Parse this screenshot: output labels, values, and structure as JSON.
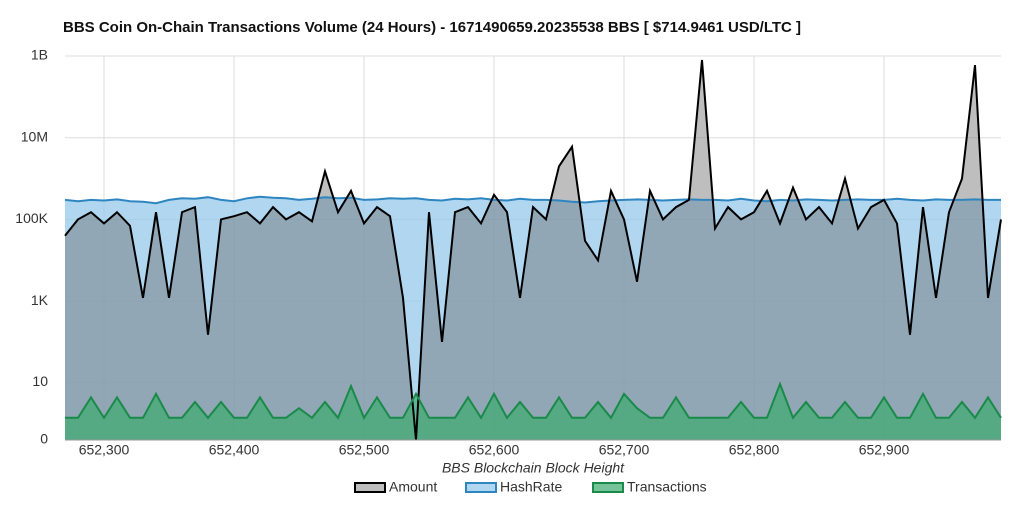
{
  "chart_data": {
    "type": "area",
    "title": "BBS Coin On-Chain Transactions Volume (24 Hours) - 1671490659.20235538 BBS [ $714.9461 USD/LTC ]",
    "x_label": "BBS Blockchain Block Height",
    "x": [
      652270,
      652280,
      652290,
      652300,
      652310,
      652320,
      652330,
      652340,
      652350,
      652360,
      652370,
      652380,
      652390,
      652400,
      652410,
      652420,
      652430,
      652440,
      652450,
      652460,
      652470,
      652480,
      652490,
      652500,
      652510,
      652520,
      652530,
      652540,
      652550,
      652560,
      652570,
      652580,
      652590,
      652600,
      652610,
      652620,
      652630,
      652640,
      652650,
      652660,
      652670,
      652680,
      652690,
      652700,
      652710,
      652720,
      652730,
      652740,
      652750,
      652760,
      652770,
      652780,
      652790,
      652800,
      652810,
      652820,
      652830,
      652840,
      652850,
      652860,
      652870,
      652880,
      652890,
      652900,
      652910,
      652920,
      652930,
      652940,
      652950,
      652960,
      652970,
      652980,
      652990
    ],
    "series": [
      {
        "name": "Amount",
        "color": "#000000",
        "fill": "rgba(110,110,110,0.45)",
        "values": [
          40000,
          100000,
          150000,
          80000,
          150000,
          70000,
          1200,
          150000,
          1200,
          150000,
          200000,
          150,
          100000,
          120000,
          150000,
          80000,
          200000,
          100000,
          150000,
          90000,
          1500000,
          150000,
          500000,
          80000,
          200000,
          120000,
          1200,
          0,
          150000,
          100,
          150000,
          200000,
          80000,
          400000,
          150000,
          1200,
          200000,
          100000,
          2000000,
          6000000,
          30000,
          10000,
          500000,
          100000,
          3000,
          500000,
          100000,
          200000,
          300000,
          800000000,
          60000,
          200000,
          100000,
          150000,
          500000,
          80000,
          600000,
          100000,
          200000,
          80000,
          1000000,
          60000,
          200000,
          300000,
          80000,
          150,
          200000,
          1200,
          150000,
          1000000,
          600000000,
          1200,
          100000
        ]
      },
      {
        "name": "HashRate",
        "color": "#2e86c1",
        "fill": "rgba(150,200,235,0.75)",
        "values": [
          300000,
          280000,
          300000,
          290000,
          310000,
          280000,
          270000,
          250000,
          300000,
          330000,
          320000,
          350000,
          300000,
          280000,
          330000,
          360000,
          340000,
          330000,
          300000,
          320000,
          350000,
          330000,
          340000,
          300000,
          310000,
          330000,
          320000,
          330000,
          300000,
          290000,
          320000,
          310000,
          330000,
          300000,
          290000,
          320000,
          300000,
          300000,
          290000,
          270000,
          260000,
          280000,
          290000,
          300000,
          310000,
          300000,
          290000,
          300000,
          310000,
          300000,
          300000,
          290000,
          320000,
          290000,
          280000,
          300000,
          290000,
          310000,
          300000,
          290000,
          300000,
          310000,
          300000,
          300000,
          320000,
          300000,
          290000,
          310000,
          300000,
          300000,
          310000,
          300000,
          300000
        ]
      },
      {
        "name": "Transactions",
        "color": "#1a8a4a",
        "fill": "rgba(60,170,110,0.7)",
        "values": [
          1,
          1,
          4,
          1,
          4,
          1,
          1,
          5,
          1,
          1,
          3,
          1,
          3,
          1,
          1,
          4,
          1,
          1,
          2,
          1,
          3,
          1,
          8,
          1,
          4,
          1,
          1,
          5,
          1,
          1,
          1,
          4,
          1,
          5,
          1,
          3,
          1,
          1,
          4,
          1,
          1,
          3,
          1,
          5,
          2,
          1,
          1,
          4,
          1,
          1,
          1,
          1,
          3,
          1,
          1,
          9,
          1,
          3,
          1,
          1,
          3,
          1,
          1,
          4,
          1,
          1,
          5,
          1,
          1,
          3,
          1,
          4,
          1
        ]
      }
    ],
    "xlim": [
      652270,
      652990
    ],
    "xticks": [
      {
        "value": 652300,
        "label": "652,300"
      },
      {
        "value": 652400,
        "label": "652,400"
      },
      {
        "value": 652500,
        "label": "652,500"
      },
      {
        "value": 652600,
        "label": "652,600"
      },
      {
        "value": 652700,
        "label": "652,700"
      },
      {
        "value": 652800,
        "label": "652,800"
      },
      {
        "value": 652900,
        "label": "652,900"
      }
    ],
    "ylim": [
      0,
      1000000000
    ],
    "yticks": [
      0,
      10,
      {
        "value": 1000,
        "label": "1K"
      },
      {
        "value": 100000,
        "label": "100K"
      },
      {
        "value": 10000000,
        "label": "10M"
      },
      {
        "value": 1000000000,
        "label": "1B"
      }
    ],
    "yscale": "symlog",
    "grid": true,
    "legend": "bottom"
  }
}
